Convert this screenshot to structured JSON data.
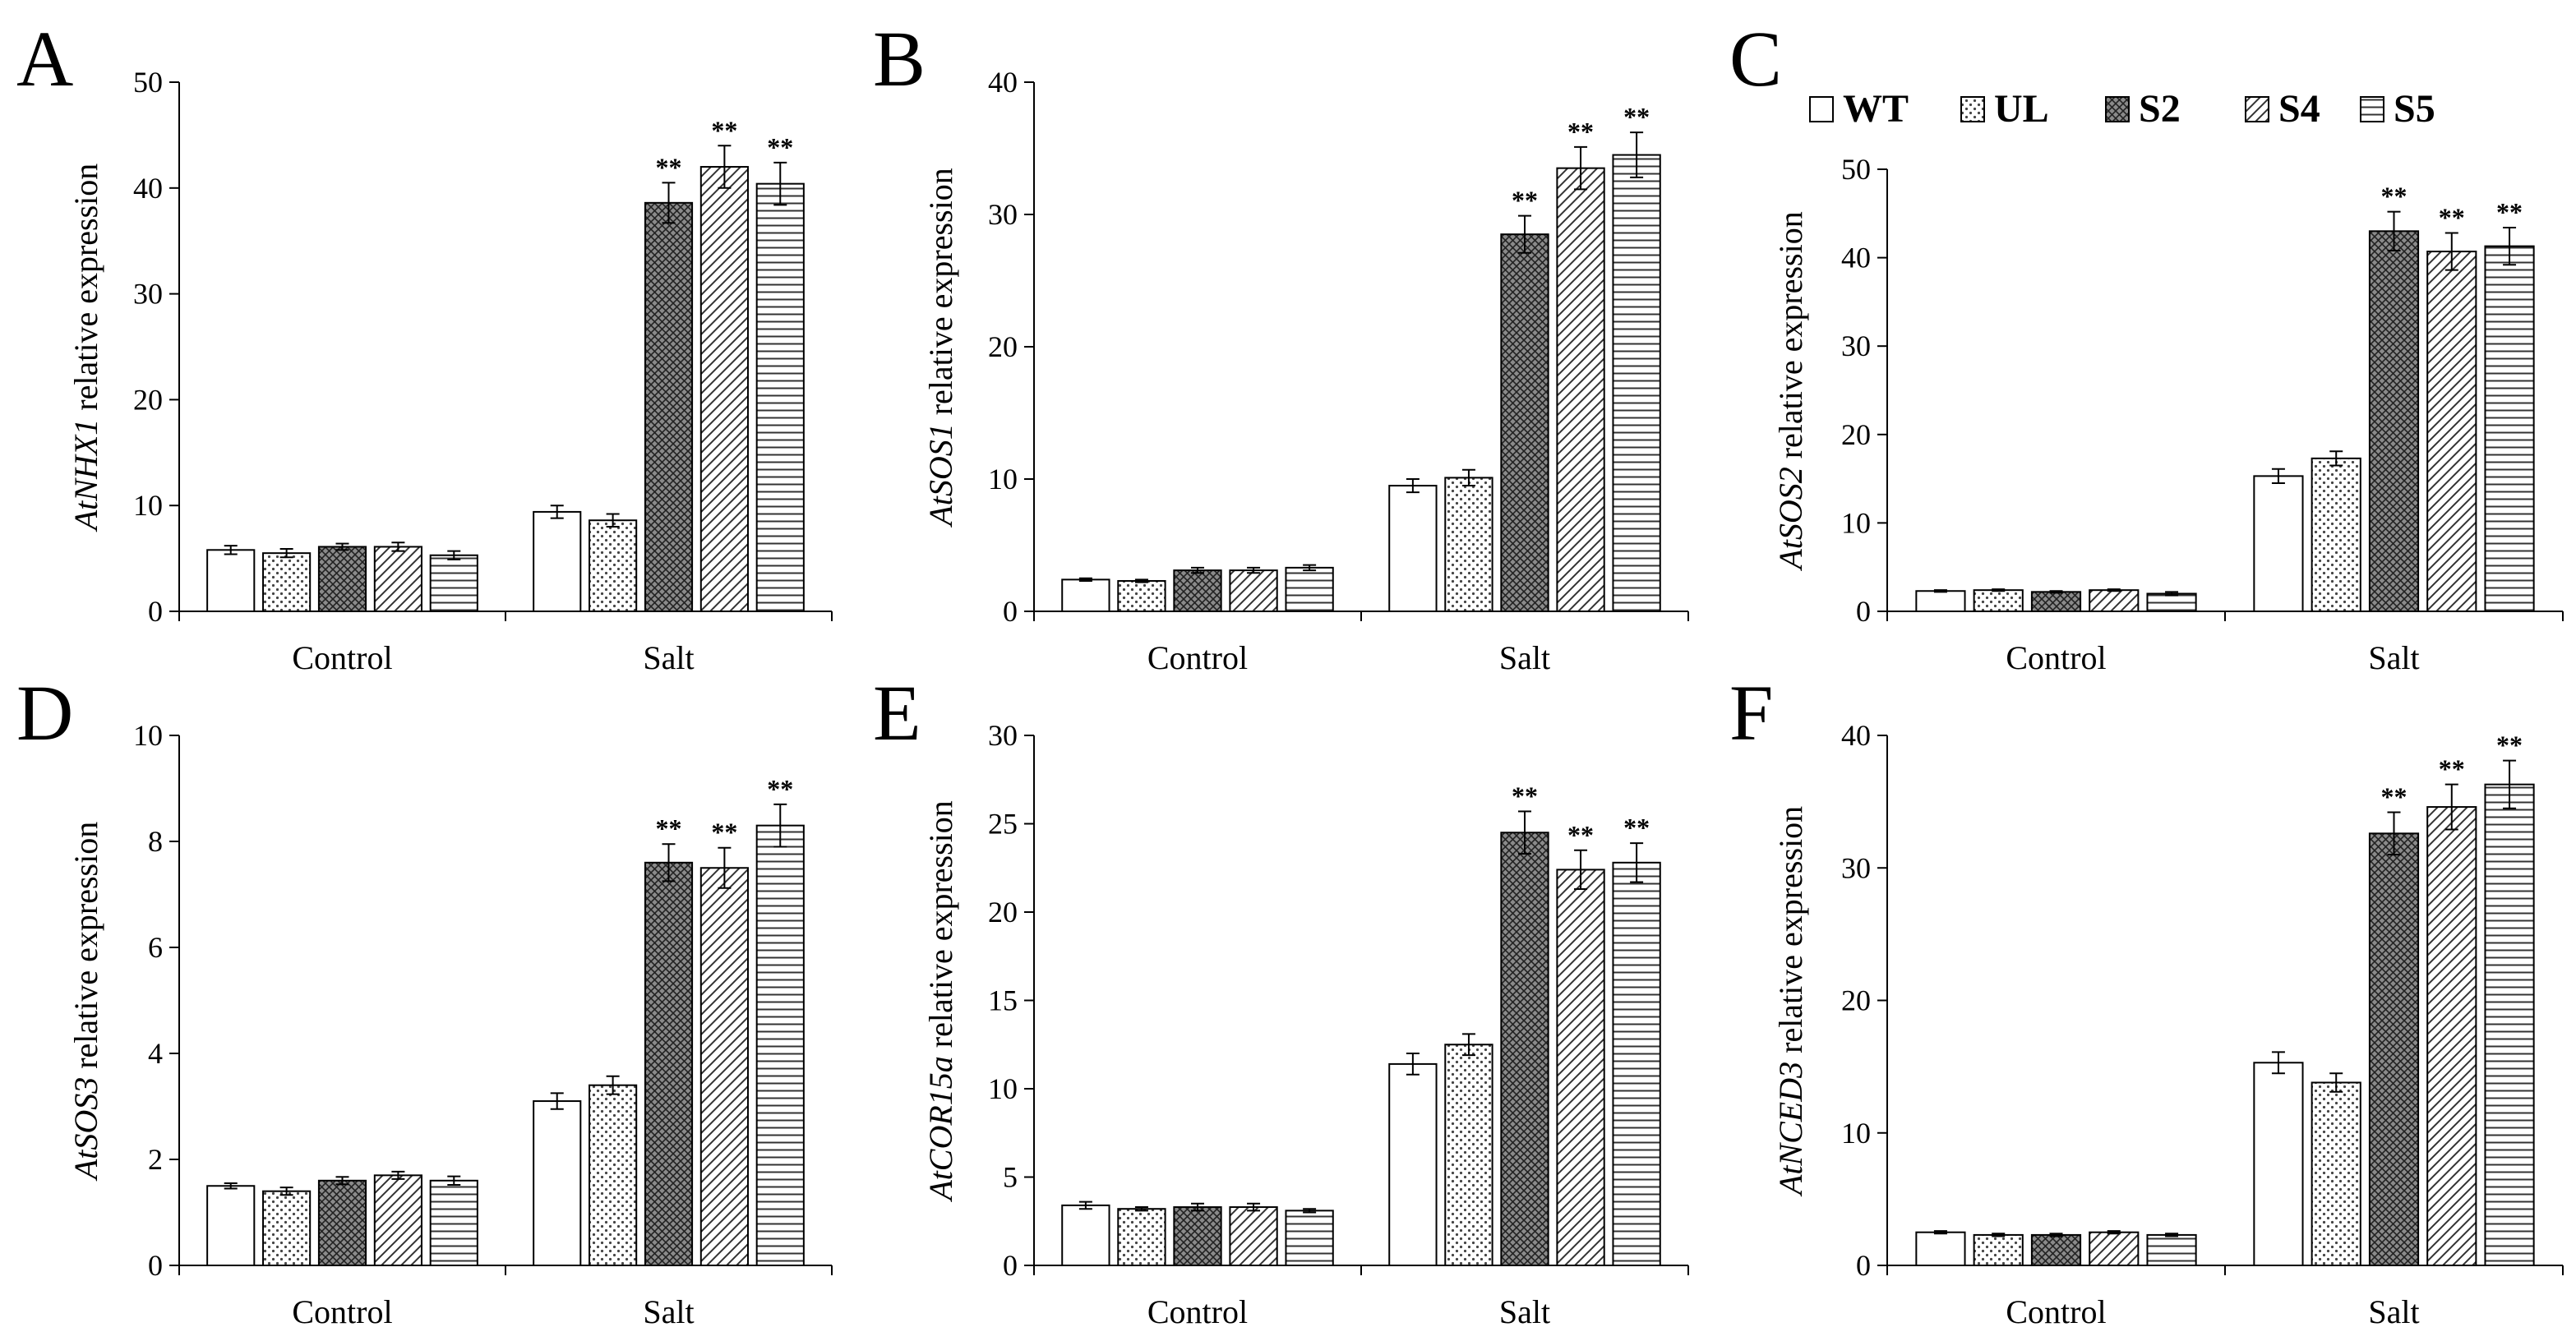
{
  "legend": {
    "entries": [
      "WT",
      "UL",
      "S2",
      "S4",
      "S5"
    ],
    "patterns": [
      "blank",
      "dots",
      "crosshatch",
      "diagonal",
      "horizontal"
    ],
    "placement": "top-right"
  },
  "chart_data": [
    {
      "type": "bar",
      "panel": "A",
      "gene": "AtNHX1",
      "ylabel_suffix": " relative expression",
      "categories": [
        "Control",
        "Salt"
      ],
      "ylim": [
        0,
        50
      ],
      "yticks": [
        0,
        10,
        20,
        30,
        40,
        50
      ],
      "series": [
        {
          "name": "WT",
          "values": [
            5.8,
            9.4
          ],
          "errors": [
            0.4,
            0.6
          ],
          "sig": [
            "",
            ""
          ]
        },
        {
          "name": "UL",
          "values": [
            5.5,
            8.6
          ],
          "errors": [
            0.4,
            0.6
          ],
          "sig": [
            "",
            ""
          ]
        },
        {
          "name": "S2",
          "values": [
            6.1,
            38.6
          ],
          "errors": [
            0.3,
            1.9
          ],
          "sig": [
            "",
            "**"
          ]
        },
        {
          "name": "S4",
          "values": [
            6.1,
            42.0
          ],
          "errors": [
            0.4,
            2.0
          ],
          "sig": [
            "",
            "**"
          ]
        },
        {
          "name": "S5",
          "values": [
            5.3,
            40.4
          ],
          "errors": [
            0.4,
            2.0
          ],
          "sig": [
            "",
            "**"
          ]
        }
      ]
    },
    {
      "type": "bar",
      "panel": "B",
      "gene": "AtSOS1",
      "ylabel_suffix": " relative expression",
      "categories": [
        "Control",
        "Salt"
      ],
      "ylim": [
        0,
        40
      ],
      "yticks": [
        0,
        10,
        20,
        30,
        40
      ],
      "series": [
        {
          "name": "WT",
          "values": [
            2.4,
            9.5
          ],
          "errors": [
            0.1,
            0.5
          ],
          "sig": [
            "",
            ""
          ]
        },
        {
          "name": "UL",
          "values": [
            2.3,
            10.1
          ],
          "errors": [
            0.1,
            0.6
          ],
          "sig": [
            "",
            ""
          ]
        },
        {
          "name": "S2",
          "values": [
            3.1,
            28.5
          ],
          "errors": [
            0.2,
            1.4
          ],
          "sig": [
            "",
            "**"
          ]
        },
        {
          "name": "S4",
          "values": [
            3.1,
            33.5
          ],
          "errors": [
            0.2,
            1.6
          ],
          "sig": [
            "",
            "**"
          ]
        },
        {
          "name": "S5",
          "values": [
            3.3,
            34.5
          ],
          "errors": [
            0.2,
            1.7
          ],
          "sig": [
            "",
            "**"
          ]
        }
      ]
    },
    {
      "type": "bar",
      "panel": "C",
      "gene": "AtSOS2",
      "ylabel_suffix": " relative expression",
      "categories": [
        "Control",
        "Salt"
      ],
      "ylim": [
        0,
        50
      ],
      "yticks": [
        0,
        10,
        20,
        30,
        40,
        50
      ],
      "series": [
        {
          "name": "WT",
          "values": [
            2.3,
            15.3
          ],
          "errors": [
            0.1,
            0.8
          ],
          "sig": [
            "",
            ""
          ]
        },
        {
          "name": "UL",
          "values": [
            2.4,
            17.3
          ],
          "errors": [
            0.1,
            0.8
          ],
          "sig": [
            "",
            ""
          ]
        },
        {
          "name": "S2",
          "values": [
            2.2,
            43.0
          ],
          "errors": [
            0.1,
            2.2
          ],
          "sig": [
            "",
            "**"
          ]
        },
        {
          "name": "S4",
          "values": [
            2.4,
            40.7
          ],
          "errors": [
            0.1,
            2.1
          ],
          "sig": [
            "",
            "**"
          ]
        },
        {
          "name": "S5",
          "values": [
            2.0,
            41.3
          ],
          "errors": [
            0.2,
            2.1
          ],
          "sig": [
            "",
            "**"
          ]
        }
      ]
    },
    {
      "type": "bar",
      "panel": "D",
      "gene": "AtSOS3",
      "ylabel_suffix": " relative expression",
      "categories": [
        "Control",
        "Salt"
      ],
      "ylim": [
        0,
        10
      ],
      "yticks": [
        0,
        2,
        4,
        6,
        8,
        10
      ],
      "series": [
        {
          "name": "WT",
          "values": [
            1.5,
            3.1
          ],
          "errors": [
            0.05,
            0.15
          ],
          "sig": [
            "",
            ""
          ]
        },
        {
          "name": "UL",
          "values": [
            1.4,
            3.4
          ],
          "errors": [
            0.07,
            0.17
          ],
          "sig": [
            "",
            ""
          ]
        },
        {
          "name": "S2",
          "values": [
            1.6,
            7.6
          ],
          "errors": [
            0.07,
            0.35
          ],
          "sig": [
            "",
            "**"
          ]
        },
        {
          "name": "S4",
          "values": [
            1.7,
            7.5
          ],
          "errors": [
            0.07,
            0.38
          ],
          "sig": [
            "",
            "**"
          ]
        },
        {
          "name": "S5",
          "values": [
            1.6,
            8.3
          ],
          "errors": [
            0.08,
            0.4
          ],
          "sig": [
            "",
            "**"
          ]
        }
      ]
    },
    {
      "type": "bar",
      "panel": "E",
      "gene": "AtCOR15a",
      "ylabel_suffix": " relative expression",
      "categories": [
        "Control",
        "Salt"
      ],
      "ylim": [
        0,
        30
      ],
      "yticks": [
        0,
        5,
        10,
        15,
        20,
        25,
        30
      ],
      "series": [
        {
          "name": "WT",
          "values": [
            3.4,
            11.4
          ],
          "errors": [
            0.2,
            0.6
          ],
          "sig": [
            "",
            ""
          ]
        },
        {
          "name": "UL",
          "values": [
            3.2,
            12.5
          ],
          "errors": [
            0.1,
            0.6
          ],
          "sig": [
            "",
            ""
          ]
        },
        {
          "name": "S2",
          "values": [
            3.3,
            24.5
          ],
          "errors": [
            0.2,
            1.2
          ],
          "sig": [
            "",
            "**"
          ]
        },
        {
          "name": "S4",
          "values": [
            3.3,
            22.4
          ],
          "errors": [
            0.2,
            1.1
          ],
          "sig": [
            "",
            "**"
          ]
        },
        {
          "name": "S5",
          "values": [
            3.1,
            22.8
          ],
          "errors": [
            0.1,
            1.1
          ],
          "sig": [
            "",
            "**"
          ]
        }
      ]
    },
    {
      "type": "bar",
      "panel": "F",
      "gene": "AtNCED3",
      "ylabel_suffix": " relative expression",
      "categories": [
        "Control",
        "Salt"
      ],
      "ylim": [
        0,
        40
      ],
      "yticks": [
        0,
        10,
        20,
        30,
        40
      ],
      "series": [
        {
          "name": "WT",
          "values": [
            2.5,
            15.3
          ],
          "errors": [
            0.1,
            0.8
          ],
          "sig": [
            "",
            ""
          ]
        },
        {
          "name": "UL",
          "values": [
            2.3,
            13.8
          ],
          "errors": [
            0.1,
            0.7
          ],
          "sig": [
            "",
            ""
          ]
        },
        {
          "name": "S2",
          "values": [
            2.3,
            32.6
          ],
          "errors": [
            0.1,
            1.6
          ],
          "sig": [
            "",
            "**"
          ]
        },
        {
          "name": "S4",
          "values": [
            2.5,
            34.6
          ],
          "errors": [
            0.1,
            1.7
          ],
          "sig": [
            "",
            "**"
          ]
        },
        {
          "name": "S5",
          "values": [
            2.3,
            36.3
          ],
          "errors": [
            0.1,
            1.8
          ],
          "sig": [
            "",
            "**"
          ]
        }
      ]
    }
  ]
}
